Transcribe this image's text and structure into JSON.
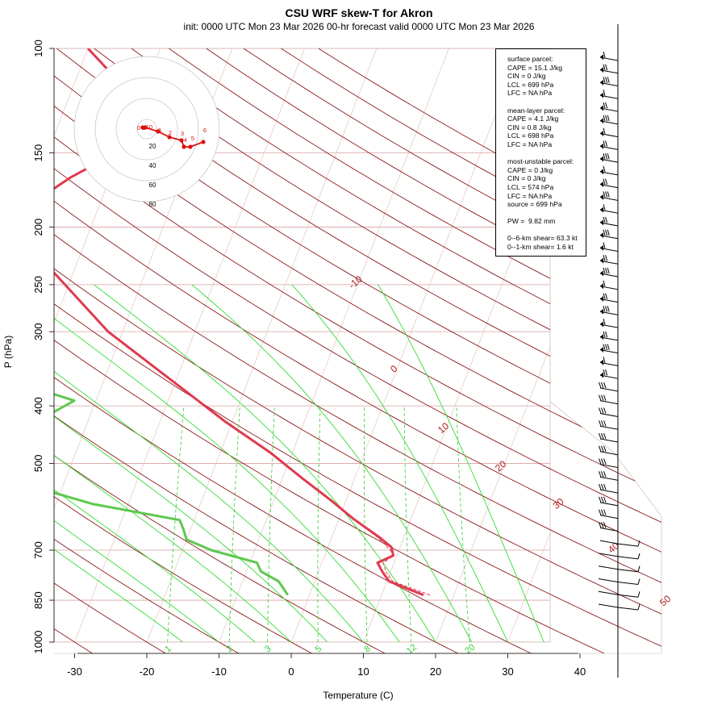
{
  "title": "CSU WRF skew-T for Akron",
  "subtitle": "init: 0000 UTC Mon 23 Mar 2026     00-hr forecast valid 0000 UTC Mon 23 Mar 2026",
  "colors": {
    "temperature": "#e03a4e",
    "dewpoint": "#5ec84e",
    "isotherm": "#8b1a1a",
    "mixing_ratio": "#22cc22",
    "grid": "#d8a0a0"
  },
  "chart_data": {
    "type": "skew-t",
    "xlabel": "Temperature (C)",
    "ylabel": "P (hPa)",
    "xlim": [
      -33,
      45
    ],
    "ylim": [
      1000,
      100
    ],
    "x_ticks": [
      -30,
      -20,
      -10,
      0,
      10,
      20,
      30,
      40
    ],
    "x_tick_labels": [
      "-30",
      "-20",
      "-10",
      "0",
      "10",
      "20",
      "30",
      "40"
    ],
    "pressure_ticks": [
      100,
      150,
      200,
      250,
      300,
      400,
      500,
      700,
      850,
      1000
    ],
    "pressure_tick_labels": [
      "100",
      "150",
      "200",
      "250",
      "300",
      "400",
      "500",
      "700",
      "850",
      "1000"
    ],
    "isotherm_labels": [
      {
        "t": -10,
        "p": 250,
        "label": "-10"
      },
      {
        "t": 0,
        "p": 350,
        "label": "0"
      },
      {
        "t": 10,
        "p": 440,
        "label": "10"
      },
      {
        "t": 20,
        "p": 510,
        "label": "20"
      },
      {
        "t": 30,
        "p": 590,
        "label": "30"
      },
      {
        "t": 40,
        "p": 700,
        "label": "40"
      },
      {
        "t": 50,
        "p": 860,
        "label": "50"
      }
    ],
    "mixing_ratio_labels": [
      "1",
      "2",
      "3",
      "5",
      "8",
      "12",
      "20"
    ],
    "mixing_ratio_values": [
      1,
      2,
      3,
      5,
      8,
      12,
      20
    ],
    "series": [
      {
        "name": "temperature",
        "points": [
          [
            15.8,
            833
          ],
          [
            10.3,
            790
          ],
          [
            8.8,
            760
          ],
          [
            7.7,
            735
          ],
          [
            9.5,
            715
          ],
          [
            8.8,
            692
          ],
          [
            6.5,
            665
          ],
          [
            2.0,
            620
          ],
          [
            -2.0,
            578
          ],
          [
            -7.0,
            532
          ],
          [
            -13.0,
            480
          ],
          [
            -21.0,
            425
          ],
          [
            -31.0,
            360
          ],
          [
            -42.0,
            300
          ],
          [
            -50.5,
            250
          ],
          [
            -56.5,
            220
          ],
          [
            -60.0,
            200
          ],
          [
            -60.0,
            185
          ],
          [
            -55.5,
            165
          ],
          [
            -50.5,
            150
          ],
          [
            -52.0,
            130
          ],
          [
            -55.5,
            110
          ],
          [
            -60.0,
            100
          ]
        ]
      },
      {
        "name": "dewpoint",
        "points": [
          [
            -3.0,
            833
          ],
          [
            -5.0,
            790
          ],
          [
            -8.0,
            760
          ],
          [
            -9.0,
            735
          ],
          [
            -16.0,
            700
          ],
          [
            -20.0,
            672
          ],
          [
            -21.0,
            645
          ],
          [
            -22.0,
            623
          ],
          [
            -35.0,
            585
          ],
          [
            -51.0,
            520
          ],
          [
            -54.0,
            488
          ],
          [
            -51.0,
            462
          ],
          [
            -49.0,
            432
          ],
          [
            -45.0,
            408
          ],
          [
            -43.0,
            392
          ],
          [
            -53.0,
            362
          ],
          [
            -59.0,
            345
          ],
          [
            -65.0,
            320
          ],
          [
            -73.0,
            285
          ],
          [
            -80.0,
            250
          ],
          [
            -84.0,
            225
          ],
          [
            -86.0,
            205
          ],
          [
            -84.0,
            185
          ],
          [
            -83.0,
            170
          ]
        ]
      },
      {
        "name": "parcel",
        "points": [
          [
            16.7,
            833
          ],
          [
            10.8,
            790
          ],
          [
            9.3,
            760
          ],
          [
            8.5,
            735
          ],
          [
            9.5,
            715
          ],
          [
            8.8,
            700
          ],
          [
            6.5,
            668
          ],
          [
            2.0,
            620
          ]
        ]
      }
    ],
    "hodograph": {
      "ring_labels": [
        "20",
        "40",
        "60",
        "80"
      ],
      "height_labels": [
        "0",
        "1",
        "10",
        "5",
        "2",
        "3",
        "4",
        "5",
        "6"
      ]
    },
    "wind_barbs_count": 44
  },
  "stats": {
    "lines": [
      "surface parcel:",
      "CAPE = 15.1 J/kg",
      "CIN = 0 J/kg",
      "LCL = 699 hPa",
      "LFC = NA hPa",
      "",
      "mean-layer parcel:",
      "CAPE = 4.1 J/kg",
      "CIN = 0.8 J/kg",
      "LCL = 698 hPa",
      "LFC = NA hPa",
      "",
      "most-unstable parcel:",
      "CAPE = 0 J/kg",
      "CIN = 0 J/kg",
      "LCL = 574 hPa",
      "LFC = NA hPa",
      "source = 699 hPa",
      "",
      "PW =  9.82 mm",
      "",
      "0--6-km shear= 63.3 kt",
      "0--1-km shear= 1.6 kt"
    ]
  }
}
